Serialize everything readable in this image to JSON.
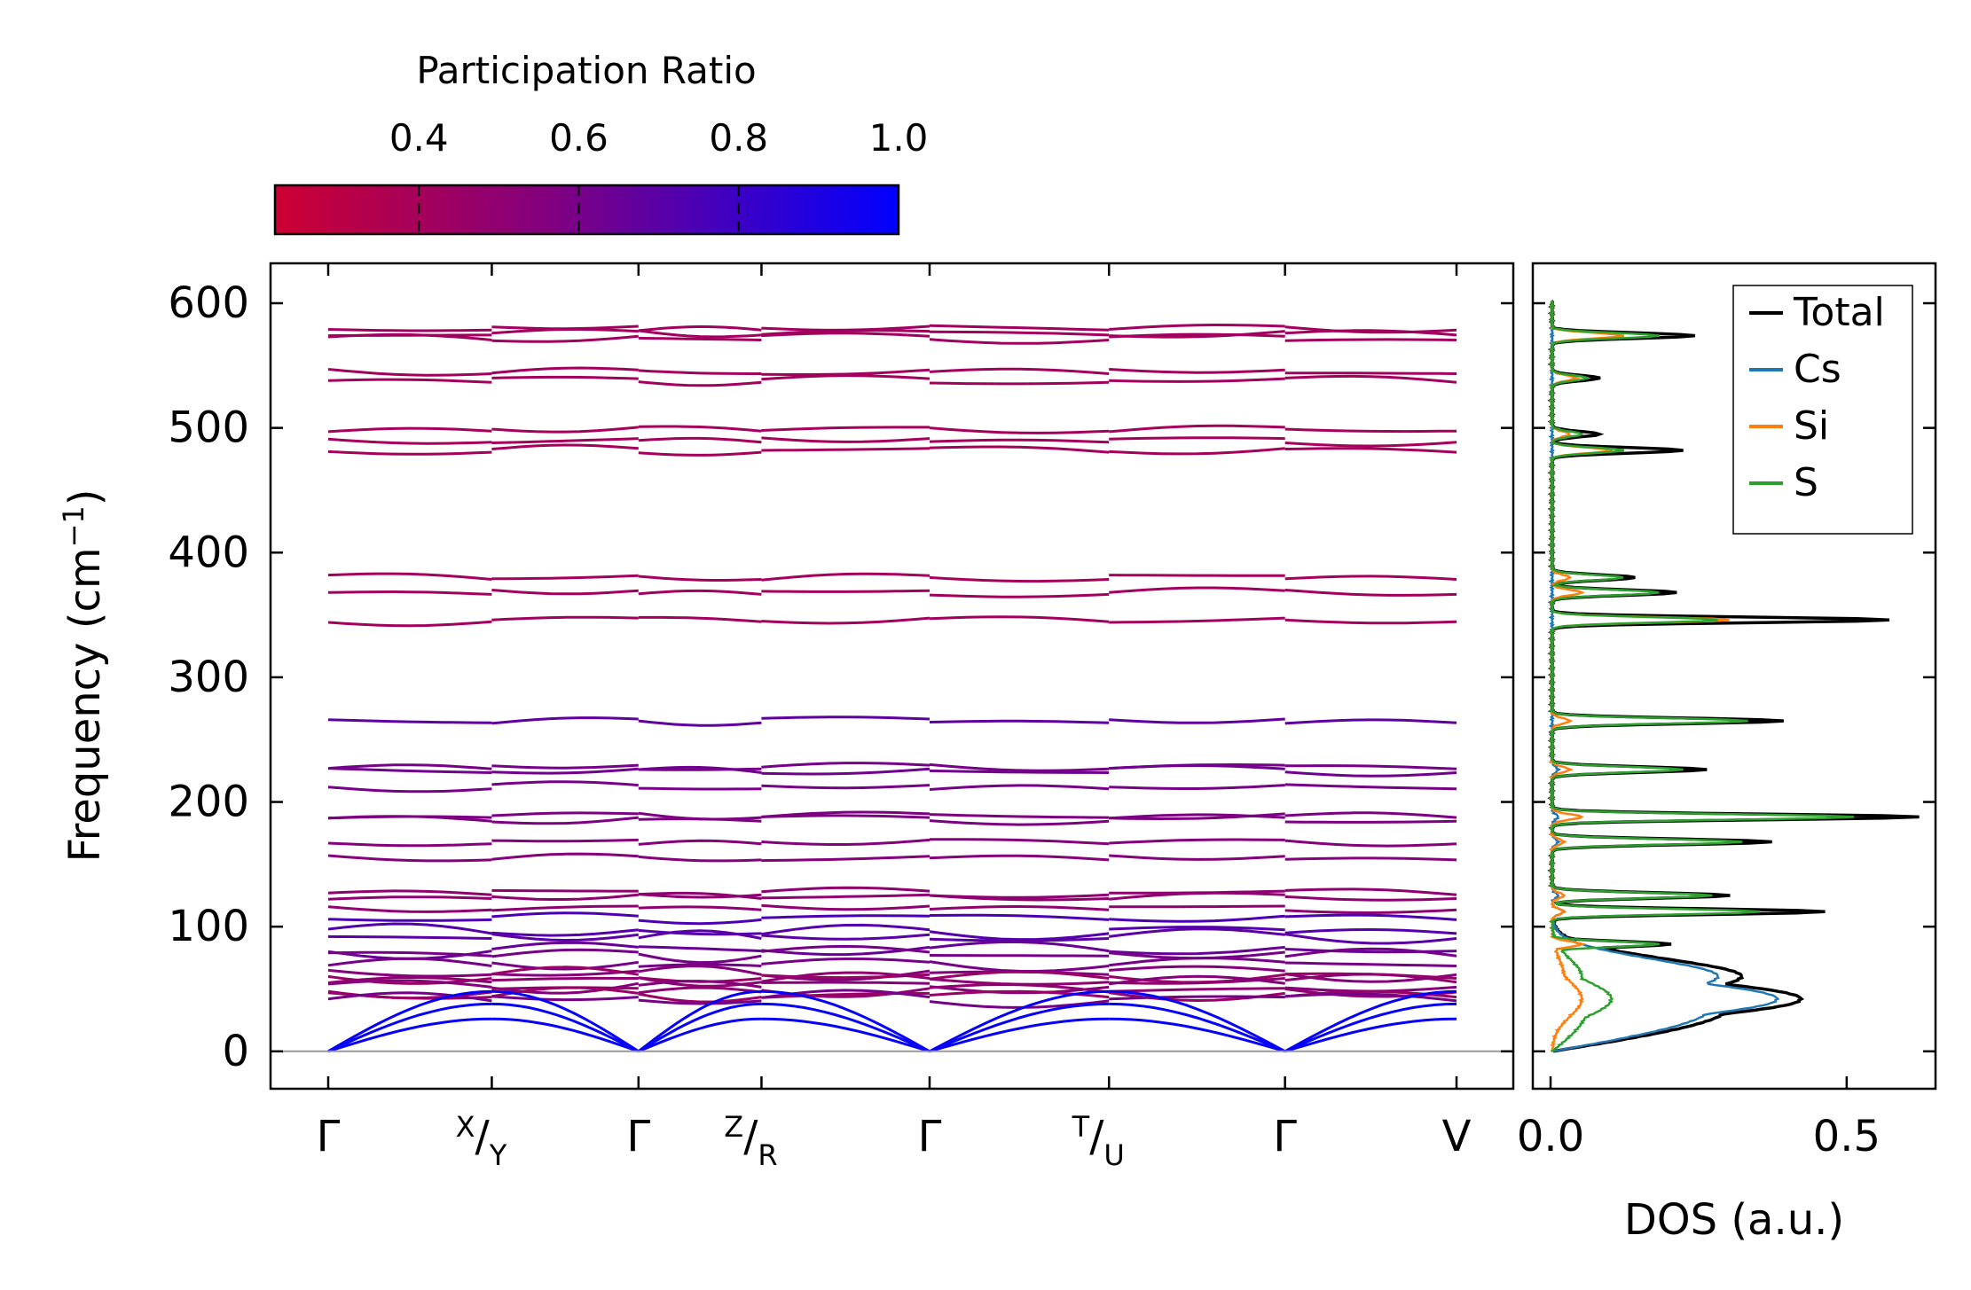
{
  "chart_data": [
    {
      "type": "line",
      "subtype": "phonon-band-structure",
      "ylabel": "Frequency (cm",
      "ylabel_sup": "−1",
      "ylabel_tail": ")",
      "ylim": [
        -30,
        632
      ],
      "yticks": [
        "0",
        "100",
        "200",
        "300",
        "400",
        "500",
        "600"
      ],
      "ytick_values": [
        0,
        100,
        200,
        300,
        400,
        500,
        600
      ],
      "kpath": [
        {
          "label": "Γ",
          "pos": 0
        },
        {
          "label": "X/Y",
          "top": "X",
          "bottom": "Y",
          "pos": 0.145
        },
        {
          "label": "Γ",
          "pos": 0.275
        },
        {
          "label": "Z/R",
          "top": "Z",
          "bottom": "R",
          "pos": 0.384
        },
        {
          "label": "Γ",
          "pos": 0.533
        },
        {
          "label": "T/U",
          "top": "T",
          "bottom": "U",
          "pos": 0.692
        },
        {
          "label": "Γ",
          "pos": 0.848
        },
        {
          "label": "V",
          "pos": 1.0
        }
      ],
      "segments": [
        [
          0,
          0.145
        ],
        [
          0.145,
          0.275
        ],
        [
          0.275,
          0.384
        ],
        [
          0.384,
          0.533
        ],
        [
          0.533,
          0.692
        ],
        [
          0.692,
          0.848
        ],
        [
          0.848,
          1.0
        ]
      ],
      "optical_bands": [
        {
          "f": 576,
          "pr": 0.42
        },
        {
          "f": 572,
          "pr": 0.42
        },
        {
          "f": 580,
          "pr": 0.42
        },
        {
          "f": 545,
          "pr": 0.41
        },
        {
          "f": 538,
          "pr": 0.41
        },
        {
          "f": 499,
          "pr": 0.4
        },
        {
          "f": 490,
          "pr": 0.4
        },
        {
          "f": 482,
          "pr": 0.4
        },
        {
          "f": 380,
          "pr": 0.4
        },
        {
          "f": 368,
          "pr": 0.41
        },
        {
          "f": 346,
          "pr": 0.41
        },
        {
          "f": 265,
          "pr": 0.68
        },
        {
          "f": 228,
          "pr": 0.6
        },
        {
          "f": 225,
          "pr": 0.62
        },
        {
          "f": 212,
          "pr": 0.6
        },
        {
          "f": 189,
          "pr": 0.58
        },
        {
          "f": 186,
          "pr": 0.58
        },
        {
          "f": 168,
          "pr": 0.55
        },
        {
          "f": 155,
          "pr": 0.55
        },
        {
          "f": 127,
          "pr": 0.5
        },
        {
          "f": 124,
          "pr": 0.5
        },
        {
          "f": 115,
          "pr": 0.5
        },
        {
          "f": 107,
          "pr": 0.75
        },
        {
          "f": 96,
          "pr": 0.72
        },
        {
          "f": 92,
          "pr": 0.7
        },
        {
          "f": 82,
          "pr": 0.65
        },
        {
          "f": 78,
          "pr": 0.6
        },
        {
          "f": 70,
          "pr": 0.6
        },
        {
          "f": 63,
          "pr": 0.55
        },
        {
          "f": 60,
          "pr": 0.45
        },
        {
          "f": 57,
          "pr": 0.5
        },
        {
          "f": 53,
          "pr": 0.55
        },
        {
          "f": 49,
          "pr": 0.5
        },
        {
          "f": 45,
          "pr": 0.45
        },
        {
          "f": 42,
          "pr": 0.6
        }
      ],
      "acoustic_band_pr": 0.98,
      "colorbar": {
        "label": "Participation Ratio",
        "range": [
          0.22,
          1.0
        ],
        "ticks": [
          "0.4",
          "0.6",
          "0.8",
          "1.0"
        ],
        "tick_values": [
          0.4,
          0.6,
          0.8,
          1.0
        ],
        "color_low": "#cc0033",
        "color_high": "#0000ff"
      }
    },
    {
      "type": "line",
      "subtype": "density-of-states",
      "xlabel": "DOS (a.u.)",
      "xticks": [
        "0.0",
        "0.5"
      ],
      "xtick_values": [
        0.0,
        0.5
      ],
      "xlim": [
        -0.03,
        0.65
      ],
      "ylim": [
        -30,
        632
      ],
      "legend_position": "top-right",
      "series": [
        {
          "name": "Total",
          "color": "#000000"
        },
        {
          "name": "Cs",
          "color": "#1f77b4"
        },
        {
          "name": "Si",
          "color": "#ff7f0e"
        },
        {
          "name": "S",
          "color": "#2ca02c"
        }
      ],
      "peaks": [
        {
          "f": 42,
          "total": 0.42,
          "cs": 0.38,
          "si": 0.05,
          "s": 0.1
        },
        {
          "f": 60,
          "total": 0.32,
          "cs": 0.28,
          "si": 0.02,
          "s": 0.05
        },
        {
          "f": 86,
          "total": 0.2,
          "cs": 0.03,
          "si": 0.05,
          "s": 0.18
        },
        {
          "f": 112,
          "total": 0.46,
          "cs": 0.02,
          "si": 0.02,
          "s": 0.35
        },
        {
          "f": 125,
          "total": 0.3,
          "cs": 0.01,
          "si": 0.02,
          "s": 0.27
        },
        {
          "f": 168,
          "total": 0.37,
          "cs": 0.01,
          "si": 0.02,
          "s": 0.32
        },
        {
          "f": 188,
          "total": 0.62,
          "cs": 0.01,
          "si": 0.05,
          "s": 0.51
        },
        {
          "f": 226,
          "total": 0.26,
          "cs": 0.01,
          "si": 0.03,
          "s": 0.22
        },
        {
          "f": 265,
          "total": 0.39,
          "cs": 0.0,
          "si": 0.03,
          "s": 0.33
        },
        {
          "f": 346,
          "total": 0.57,
          "cs": 0.0,
          "si": 0.3,
          "s": 0.28
        },
        {
          "f": 368,
          "total": 0.21,
          "cs": 0.0,
          "si": 0.05,
          "s": 0.18
        },
        {
          "f": 380,
          "total": 0.14,
          "cs": 0.0,
          "si": 0.03,
          "s": 0.12
        },
        {
          "f": 482,
          "total": 0.22,
          "cs": 0.0,
          "si": 0.1,
          "s": 0.12
        },
        {
          "f": 495,
          "total": 0.08,
          "cs": 0.0,
          "si": 0.03,
          "s": 0.05
        },
        {
          "f": 540,
          "total": 0.08,
          "cs": 0.0,
          "si": 0.04,
          "s": 0.06
        },
        {
          "f": 574,
          "total": 0.24,
          "cs": 0.0,
          "si": 0.12,
          "s": 0.18
        }
      ]
    }
  ]
}
